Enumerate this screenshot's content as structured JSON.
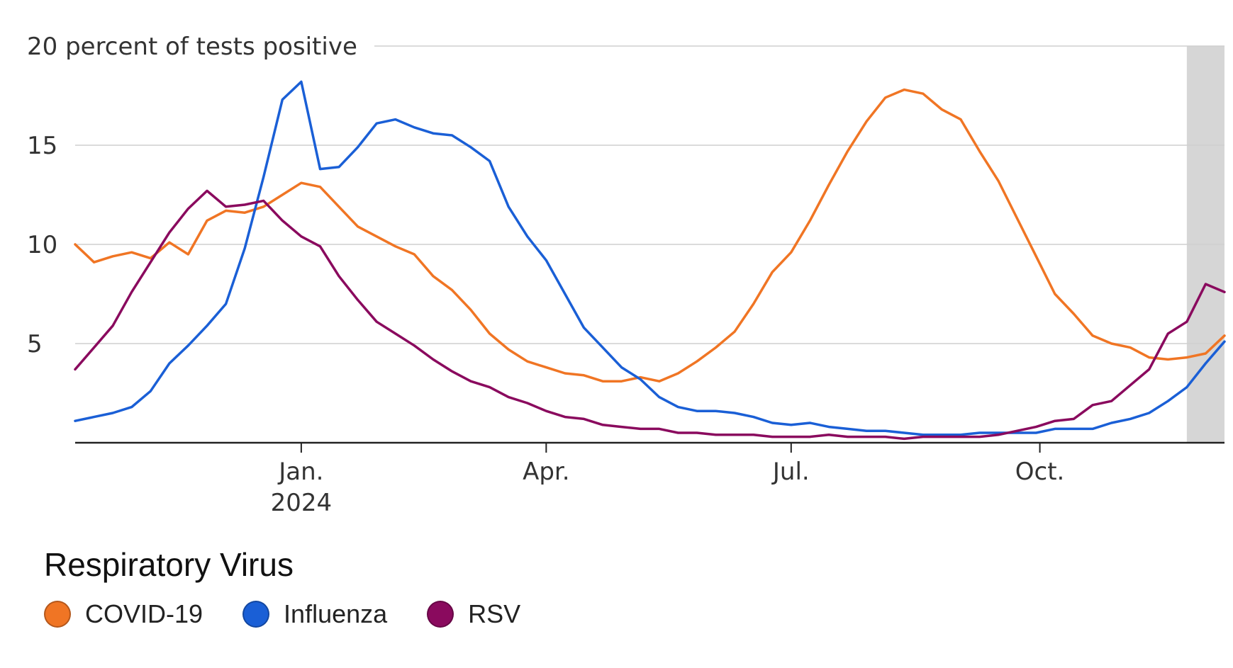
{
  "chart_data": {
    "type": "line",
    "ylabel": "percent of tests positive",
    "ylim": [
      0,
      20
    ],
    "yticks": [
      5,
      10,
      15,
      20
    ],
    "grid": true,
    "x_month_ticks": [
      {
        "label": "Jan.",
        "sublabel": "2024",
        "week": 12.0
      },
      {
        "label": "Apr.",
        "sublabel": "",
        "week": 25.0
      },
      {
        "label": "Jul.",
        "sublabel": "",
        "week": 38.0
      },
      {
        "label": "Oct.",
        "sublabel": "",
        "week": 51.2
      }
    ],
    "x_range_weeks": [
      0,
      61
    ],
    "shaded_recent_from_week": 59,
    "legend": {
      "title": "Respiratory Virus",
      "placement": "bottom-left"
    },
    "series": [
      {
        "name": "COVID-19",
        "color": "#f07524",
        "values": [
          10.0,
          9.1,
          9.4,
          9.6,
          9.3,
          10.1,
          9.5,
          11.2,
          11.7,
          11.6,
          11.9,
          12.5,
          13.1,
          12.9,
          11.9,
          10.9,
          10.4,
          9.9,
          9.5,
          8.4,
          7.7,
          6.7,
          5.5,
          4.7,
          4.1,
          3.8,
          3.5,
          3.4,
          3.1,
          3.1,
          3.3,
          3.1,
          3.5,
          4.1,
          4.8,
          5.6,
          7.0,
          8.6,
          9.6,
          11.2,
          13.0,
          14.7,
          16.2,
          17.4,
          17.8,
          17.6,
          16.8,
          16.3,
          14.7,
          13.2,
          11.3,
          9.4,
          7.5,
          6.5,
          5.4,
          5.0,
          4.8,
          4.3,
          4.2,
          4.3,
          4.5,
          5.4
        ]
      },
      {
        "name": "Influenza",
        "color": "#1a5fd6",
        "values": [
          1.1,
          1.3,
          1.5,
          1.8,
          2.6,
          4.0,
          4.9,
          5.9,
          7.0,
          9.8,
          13.4,
          17.3,
          18.2,
          13.8,
          13.9,
          14.9,
          16.1,
          16.3,
          15.9,
          15.6,
          15.5,
          14.9,
          14.2,
          11.9,
          10.4,
          9.2,
          7.5,
          5.8,
          4.8,
          3.8,
          3.2,
          2.3,
          1.8,
          1.6,
          1.6,
          1.5,
          1.3,
          1.0,
          0.9,
          1.0,
          0.8,
          0.7,
          0.6,
          0.6,
          0.5,
          0.4,
          0.4,
          0.4,
          0.5,
          0.5,
          0.5,
          0.5,
          0.7,
          0.7,
          0.7,
          1.0,
          1.2,
          1.5,
          2.1,
          2.8,
          4.0,
          5.1
        ]
      },
      {
        "name": "RSV",
        "color": "#8a0a5e",
        "values": [
          3.7,
          4.8,
          5.9,
          7.6,
          9.1,
          10.6,
          11.8,
          12.7,
          11.9,
          12.0,
          12.2,
          11.2,
          10.4,
          9.9,
          8.4,
          7.2,
          6.1,
          5.5,
          4.9,
          4.2,
          3.6,
          3.1,
          2.8,
          2.3,
          2.0,
          1.6,
          1.3,
          1.2,
          0.9,
          0.8,
          0.7,
          0.7,
          0.5,
          0.5,
          0.4,
          0.4,
          0.4,
          0.3,
          0.3,
          0.3,
          0.4,
          0.3,
          0.3,
          0.3,
          0.2,
          0.3,
          0.3,
          0.3,
          0.3,
          0.4,
          0.6,
          0.8,
          1.1,
          1.2,
          1.9,
          2.1,
          2.9,
          3.7,
          5.5,
          6.1,
          8.0,
          7.6
        ]
      }
    ]
  }
}
